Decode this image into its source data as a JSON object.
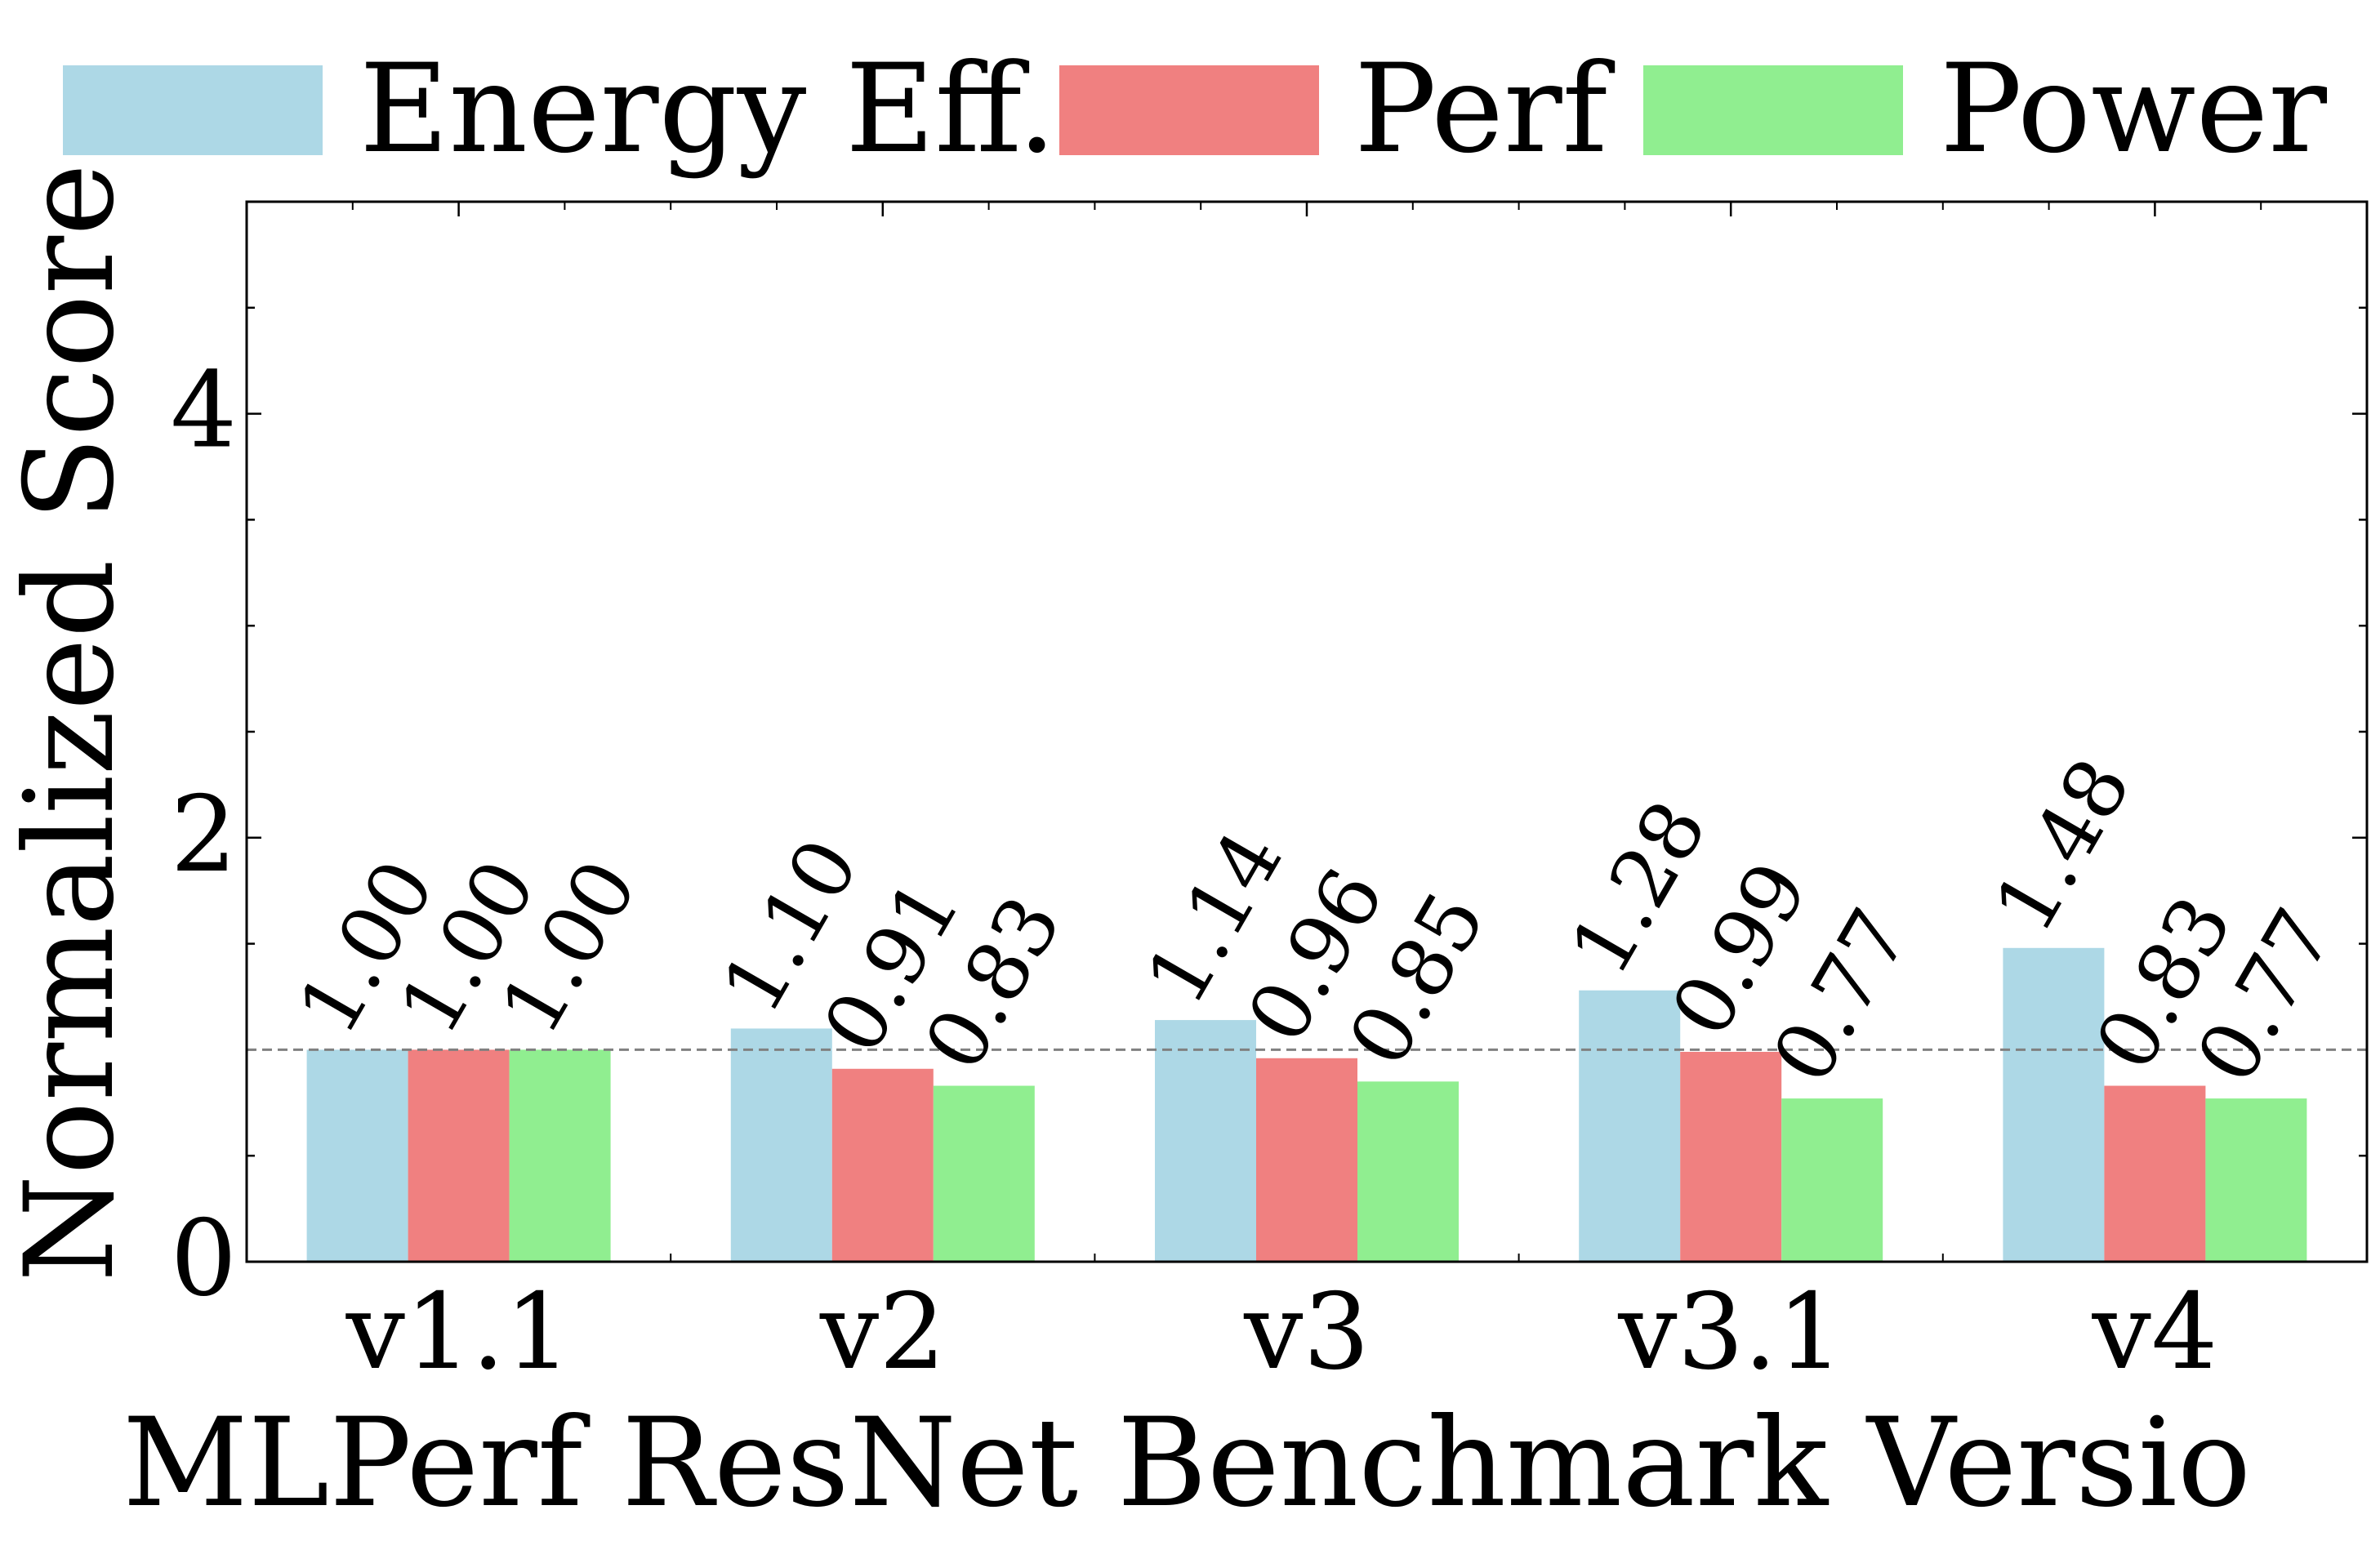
{
  "chart_data": {
    "type": "bar",
    "title": "",
    "xlabel": "MLPerf ResNet Benchmark Versio",
    "ylabel": "Normalized Score",
    "categories": [
      "v1.1",
      "v2",
      "v3",
      "v3.1",
      "v4"
    ],
    "series": [
      {
        "name": "Energy Eff.",
        "color": "#add8e6",
        "values": [
          1.0,
          1.1,
          1.14,
          1.28,
          1.48
        ],
        "labels": [
          "1.00",
          "1.10",
          "1.14",
          "1.28",
          "1.48"
        ]
      },
      {
        "name": "Perf",
        "color": "#f08080",
        "values": [
          1.0,
          0.91,
          0.96,
          0.99,
          0.83
        ],
        "labels": [
          "1.00",
          "0.91",
          "0.96",
          "0.99",
          "0.83"
        ]
      },
      {
        "name": "Power",
        "color": "#90ee90",
        "values": [
          1.0,
          0.83,
          0.85,
          0.77,
          0.77
        ],
        "labels": [
          "1.00",
          "0.83",
          "0.85",
          "0.77",
          "0.77"
        ]
      }
    ],
    "ylim": [
      0,
      5
    ],
    "yticks": [
      0,
      2,
      4
    ],
    "ytick_labels": [
      "0",
      "2",
      "4"
    ],
    "minor_ytick_step": 0.5,
    "reference_line": {
      "y": 1.0,
      "style": "dashed",
      "color": "#808080"
    },
    "legend": {
      "placement": "top",
      "columns": 3
    },
    "grid": false
  }
}
